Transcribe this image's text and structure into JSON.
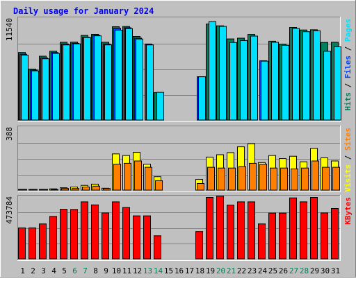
{
  "chart_data": {
    "type": "bar",
    "title": "Daily usage for January 2024",
    "days": [
      "1",
      "2",
      "3",
      "4",
      "5",
      "6",
      "7",
      "8",
      "9",
      "10",
      "11",
      "12",
      "13",
      "14",
      "15",
      "16",
      "17",
      "18",
      "19",
      "20",
      "21",
      "22",
      "23",
      "24",
      "25",
      "26",
      "27",
      "28",
      "29",
      "30",
      "31"
    ],
    "weekend_days": [
      "6",
      "7",
      "13",
      "14",
      "20",
      "21",
      "27",
      "28"
    ],
    "panels": [
      {
        "id": "hits",
        "max_label": "11540",
        "ymax": 11540,
        "legend": [
          {
            "text": "Hits",
            "color": "#00805c"
          },
          {
            "text": "Files",
            "color": "#0040ff"
          },
          {
            "text": "Pages",
            "color": "#00e0ff"
          }
        ],
        "series": [
          {
            "name": "Hits",
            "color": "#00805c",
            "values": [
              7800,
              5880,
              7370,
              7950,
              8980,
              9000,
              9780,
              9900,
              8980,
              10780,
              10800,
              9660,
              null,
              3170,
              null,
              null,
              null,
              null,
              11090,
              10880,
              9370,
              9460,
              9890,
              null,
              9100,
              8770,
              10700,
              10400,
              10430,
              8960,
              8980
            ]
          },
          {
            "name": "Files",
            "color": "#0040ff",
            "values": [
              7600,
              5780,
              7170,
              7800,
              8780,
              8860,
              9580,
              9800,
              8780,
              10600,
              10660,
              9460,
              8780,
              null,
              null,
              null,
              null,
              5000,
              null,
              null,
              null,
              null,
              null,
              6840,
              null,
              null,
              null,
              null,
              null,
              null,
              null
            ]
          },
          {
            "name": "Pages",
            "color": "#00e0ff",
            "values": [
              7500,
              5680,
              7080,
              7690,
              8680,
              8800,
              9530,
              9730,
              8680,
              10380,
              10560,
              9360,
              8680,
              3200,
              null,
              null,
              null,
              5000,
              11370,
              10820,
              8960,
              9180,
              9700,
              6800,
              8980,
              8630,
              10590,
              10200,
              10310,
              7940,
              8460
            ]
          }
        ]
      },
      {
        "id": "visits",
        "max_label": "388",
        "ymax": 388,
        "legend": [
          {
            "text": "Visits",
            "color": "#ffff00"
          },
          {
            "text": "Sites",
            "color": "#ff8000"
          }
        ],
        "series": [
          {
            "name": "Visits",
            "color": "#ffff00",
            "values": [
              5,
              5,
              5,
              8,
              15,
              20,
              30,
              38,
              12,
              230,
              220,
              240,
              165,
              85,
              null,
              null,
              null,
              68,
              210,
              225,
              238,
              275,
              295,
              175,
              220,
              200,
              215,
              180,
              265,
              205,
              185
            ]
          },
          {
            "name": "Sites",
            "color": "#ff8000",
            "values": [
              5,
              5,
              5,
              5,
              10,
              10,
              20,
              25,
              10,
              165,
              170,
              185,
              145,
              60,
              null,
              null,
              null,
              42,
              145,
              140,
              140,
              150,
              170,
              165,
              140,
              140,
              135,
              140,
              185,
              145,
              145
            ]
          }
        ]
      },
      {
        "id": "kbytes",
        "max_label": "473784",
        "ymax": 473784,
        "legend": [
          {
            "text": "KBytes",
            "color": "#ff0000"
          }
        ],
        "series": [
          {
            "name": "KBytes",
            "color": "#ff0000",
            "values": [
              243000,
              243000,
              274000,
              333000,
              389000,
              387000,
              447000,
              423000,
              360000,
              447000,
              403000,
              337000,
              337000,
              181000,
              null,
              null,
              null,
              214000,
              482000,
              492000,
              422000,
              447000,
              447000,
              274000,
              359000,
              359000,
              478000,
              447000,
              482000,
              360000,
              395000
            ]
          }
        ]
      }
    ]
  }
}
